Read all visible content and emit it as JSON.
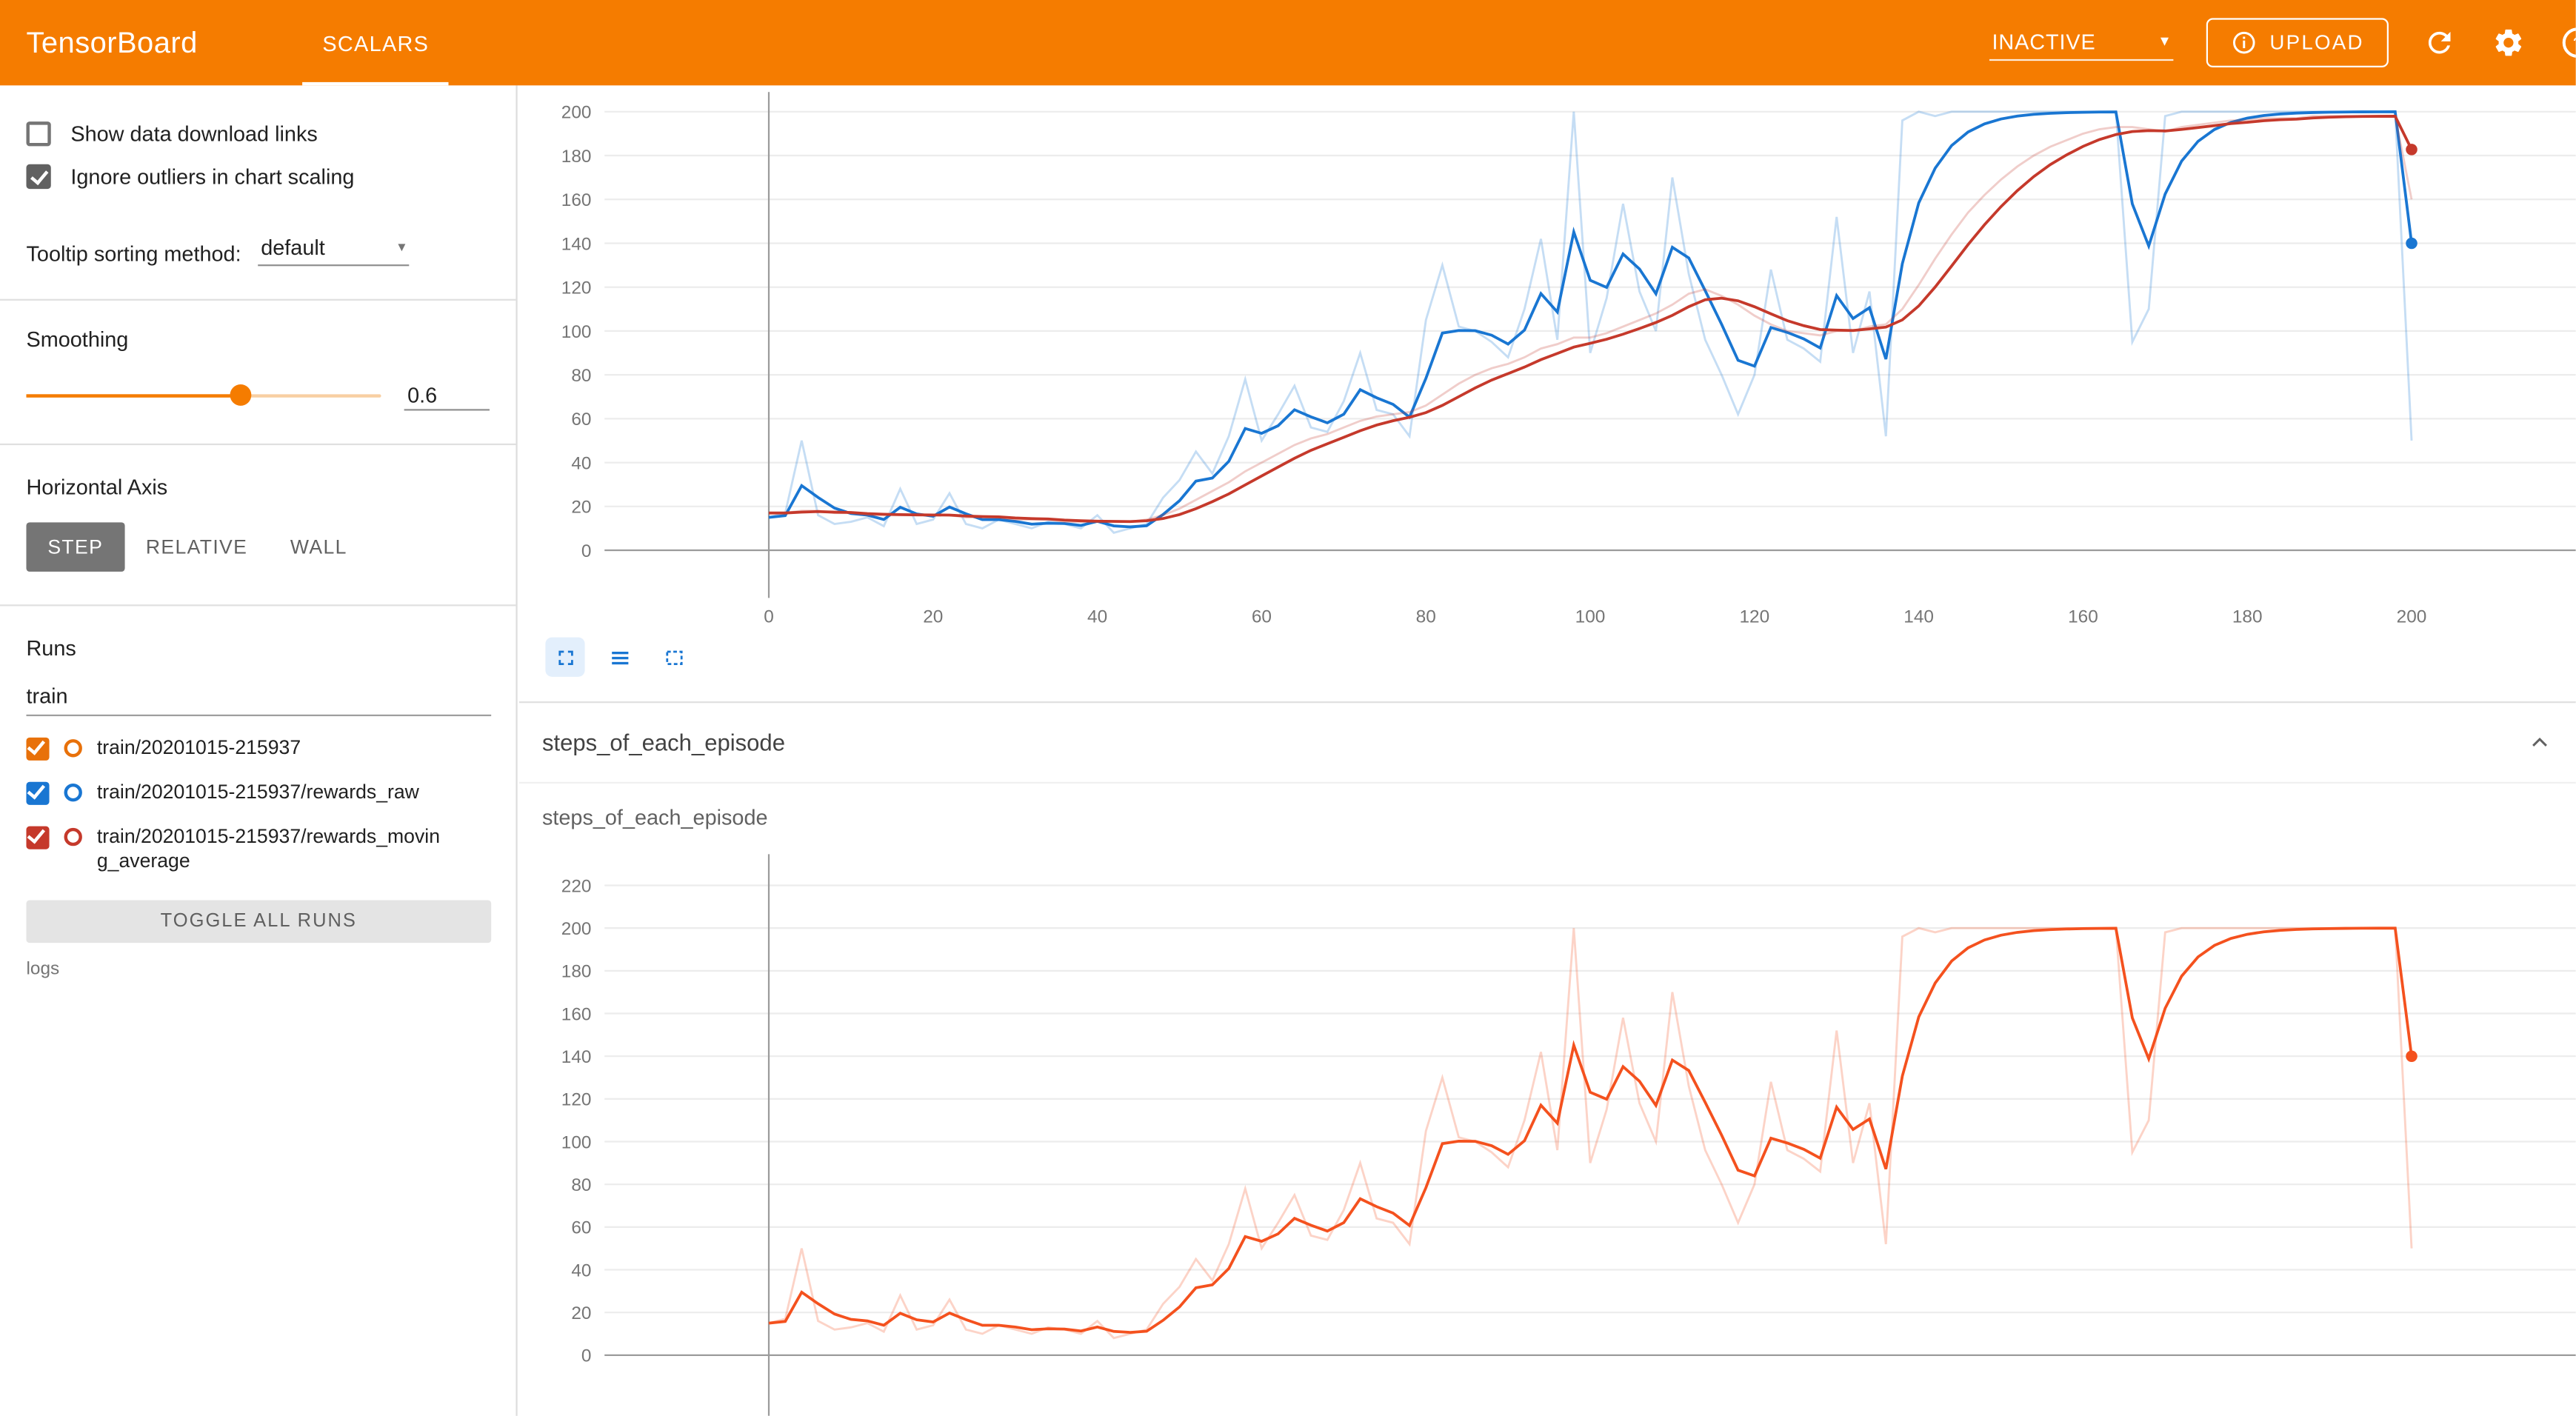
{
  "header": {
    "title": "TensorBoard",
    "active_tab": "SCALARS",
    "status_label": "INACTIVE",
    "upload_label": "UPLOAD",
    "icons": {
      "status_caret": "chevron-down",
      "upload": "info-circle",
      "refresh": "refresh-arrow",
      "settings": "gear",
      "help": "question-circle"
    },
    "colors": {
      "header_bg": "#f57c00"
    }
  },
  "sidebar": {
    "checkboxes": [
      {
        "label": "Show data download links",
        "checked": false
      },
      {
        "label": "Ignore outliers in chart scaling",
        "checked": true
      }
    ],
    "tooltip_sort": {
      "label": "Tooltip sorting method:",
      "value": "default"
    },
    "smoothing": {
      "label": "Smoothing",
      "value": "0.6"
    },
    "horizontal_axis": {
      "label": "Horizontal Axis",
      "options": [
        "STEP",
        "RELATIVE",
        "WALL"
      ],
      "selected": "STEP"
    },
    "runs_section": {
      "title": "Runs",
      "filter_value": "train",
      "runs": [
        {
          "label": "train/20201015-215937",
          "color": "#e8710a",
          "checked": true
        },
        {
          "label": "train/20201015-215937/rewards_raw",
          "color": "#1976d2",
          "checked": true
        },
        {
          "label": "train/20201015-215937/rewards_moving_average",
          "color": "#c5392b",
          "checked": true
        }
      ],
      "toggle_all_label": "TOGGLE ALL RUNS",
      "logdir_label": "logs"
    }
  },
  "main": {
    "section_title": "steps_of_each_episode",
    "card_title": "steps_of_each_episode"
  },
  "chart_data": {
    "type": "line",
    "x_start": 0,
    "x_step": 2,
    "smoothing_applied": 0.6,
    "charts": [
      {
        "id": "top-scalar-chart",
        "x_ticks": [
          0,
          20,
          40,
          60,
          80,
          100,
          120,
          140,
          160,
          180,
          200
        ],
        "y_ticks": [
          0,
          20,
          40,
          60,
          80,
          100,
          120,
          140,
          160,
          180,
          200
        ],
        "series": [
          {
            "name": "train/20201015-215937/rewards_raw",
            "color": "#1976d2",
            "values_key": "steps_raw",
            "smoothing": 0.6
          },
          {
            "name": "train/20201015-215937/rewards_moving_average",
            "color": "#c5392b",
            "values_key": "moving_average",
            "smoothing": 0.6
          }
        ]
      },
      {
        "id": "steps_of_each_episode",
        "title": "steps_of_each_episode",
        "y_ticks": [
          0,
          20,
          40,
          60,
          80,
          100,
          120,
          140,
          160,
          180,
          200,
          220
        ],
        "series": [
          {
            "name": "train/20201015-215937",
            "color": "#f4511e",
            "values_key": "steps_raw",
            "smoothing": 0.6
          }
        ]
      }
    ],
    "values": {
      "steps_raw": [
        15,
        17,
        50,
        16,
        12,
        13,
        15,
        11,
        28,
        12,
        14,
        26,
        12,
        10,
        14,
        12,
        10,
        13,
        12,
        10,
        16,
        8,
        10,
        12,
        24,
        32,
        45,
        35,
        52,
        78,
        50,
        62,
        75,
        56,
        54,
        68,
        90,
        64,
        62,
        52,
        105,
        130,
        102,
        100,
        95,
        88,
        110,
        142,
        96,
        200,
        90,
        115,
        158,
        118,
        100,
        170,
        126,
        96,
        80,
        62,
        80,
        128,
        96,
        92,
        86,
        152,
        90,
        118,
        52,
        196,
        200,
        198,
        200,
        200,
        200,
        200,
        200,
        200,
        200,
        200,
        200,
        200,
        200,
        95,
        110,
        198,
        200,
        200,
        200,
        200,
        200,
        200,
        200,
        200,
        200,
        200,
        200,
        200,
        200,
        200,
        50
      ],
      "moving_average": [
        17,
        17,
        18,
        18,
        17,
        17,
        16,
        16,
        16,
        16,
        16,
        16,
        15,
        15,
        15,
        14,
        14,
        14,
        13,
        13,
        13,
        13,
        13,
        14,
        16,
        19,
        23,
        27,
        31,
        36,
        40,
        44,
        48,
        51,
        53,
        56,
        59,
        61,
        62,
        63,
        66,
        71,
        76,
        80,
        83,
        85,
        88,
        92,
        94,
        97,
        97,
        99,
        102,
        105,
        108,
        112,
        117,
        119,
        116,
        112,
        107,
        103,
        100,
        99,
        98,
        100,
        100,
        102,
        103,
        110,
        121,
        133,
        144,
        154,
        162,
        169,
        175,
        180,
        184,
        187,
        190,
        192,
        193,
        193,
        192,
        191,
        193,
        194,
        195,
        196,
        196,
        197,
        197,
        197,
        198,
        198,
        198,
        198,
        198,
        198,
        160
      ]
    }
  }
}
